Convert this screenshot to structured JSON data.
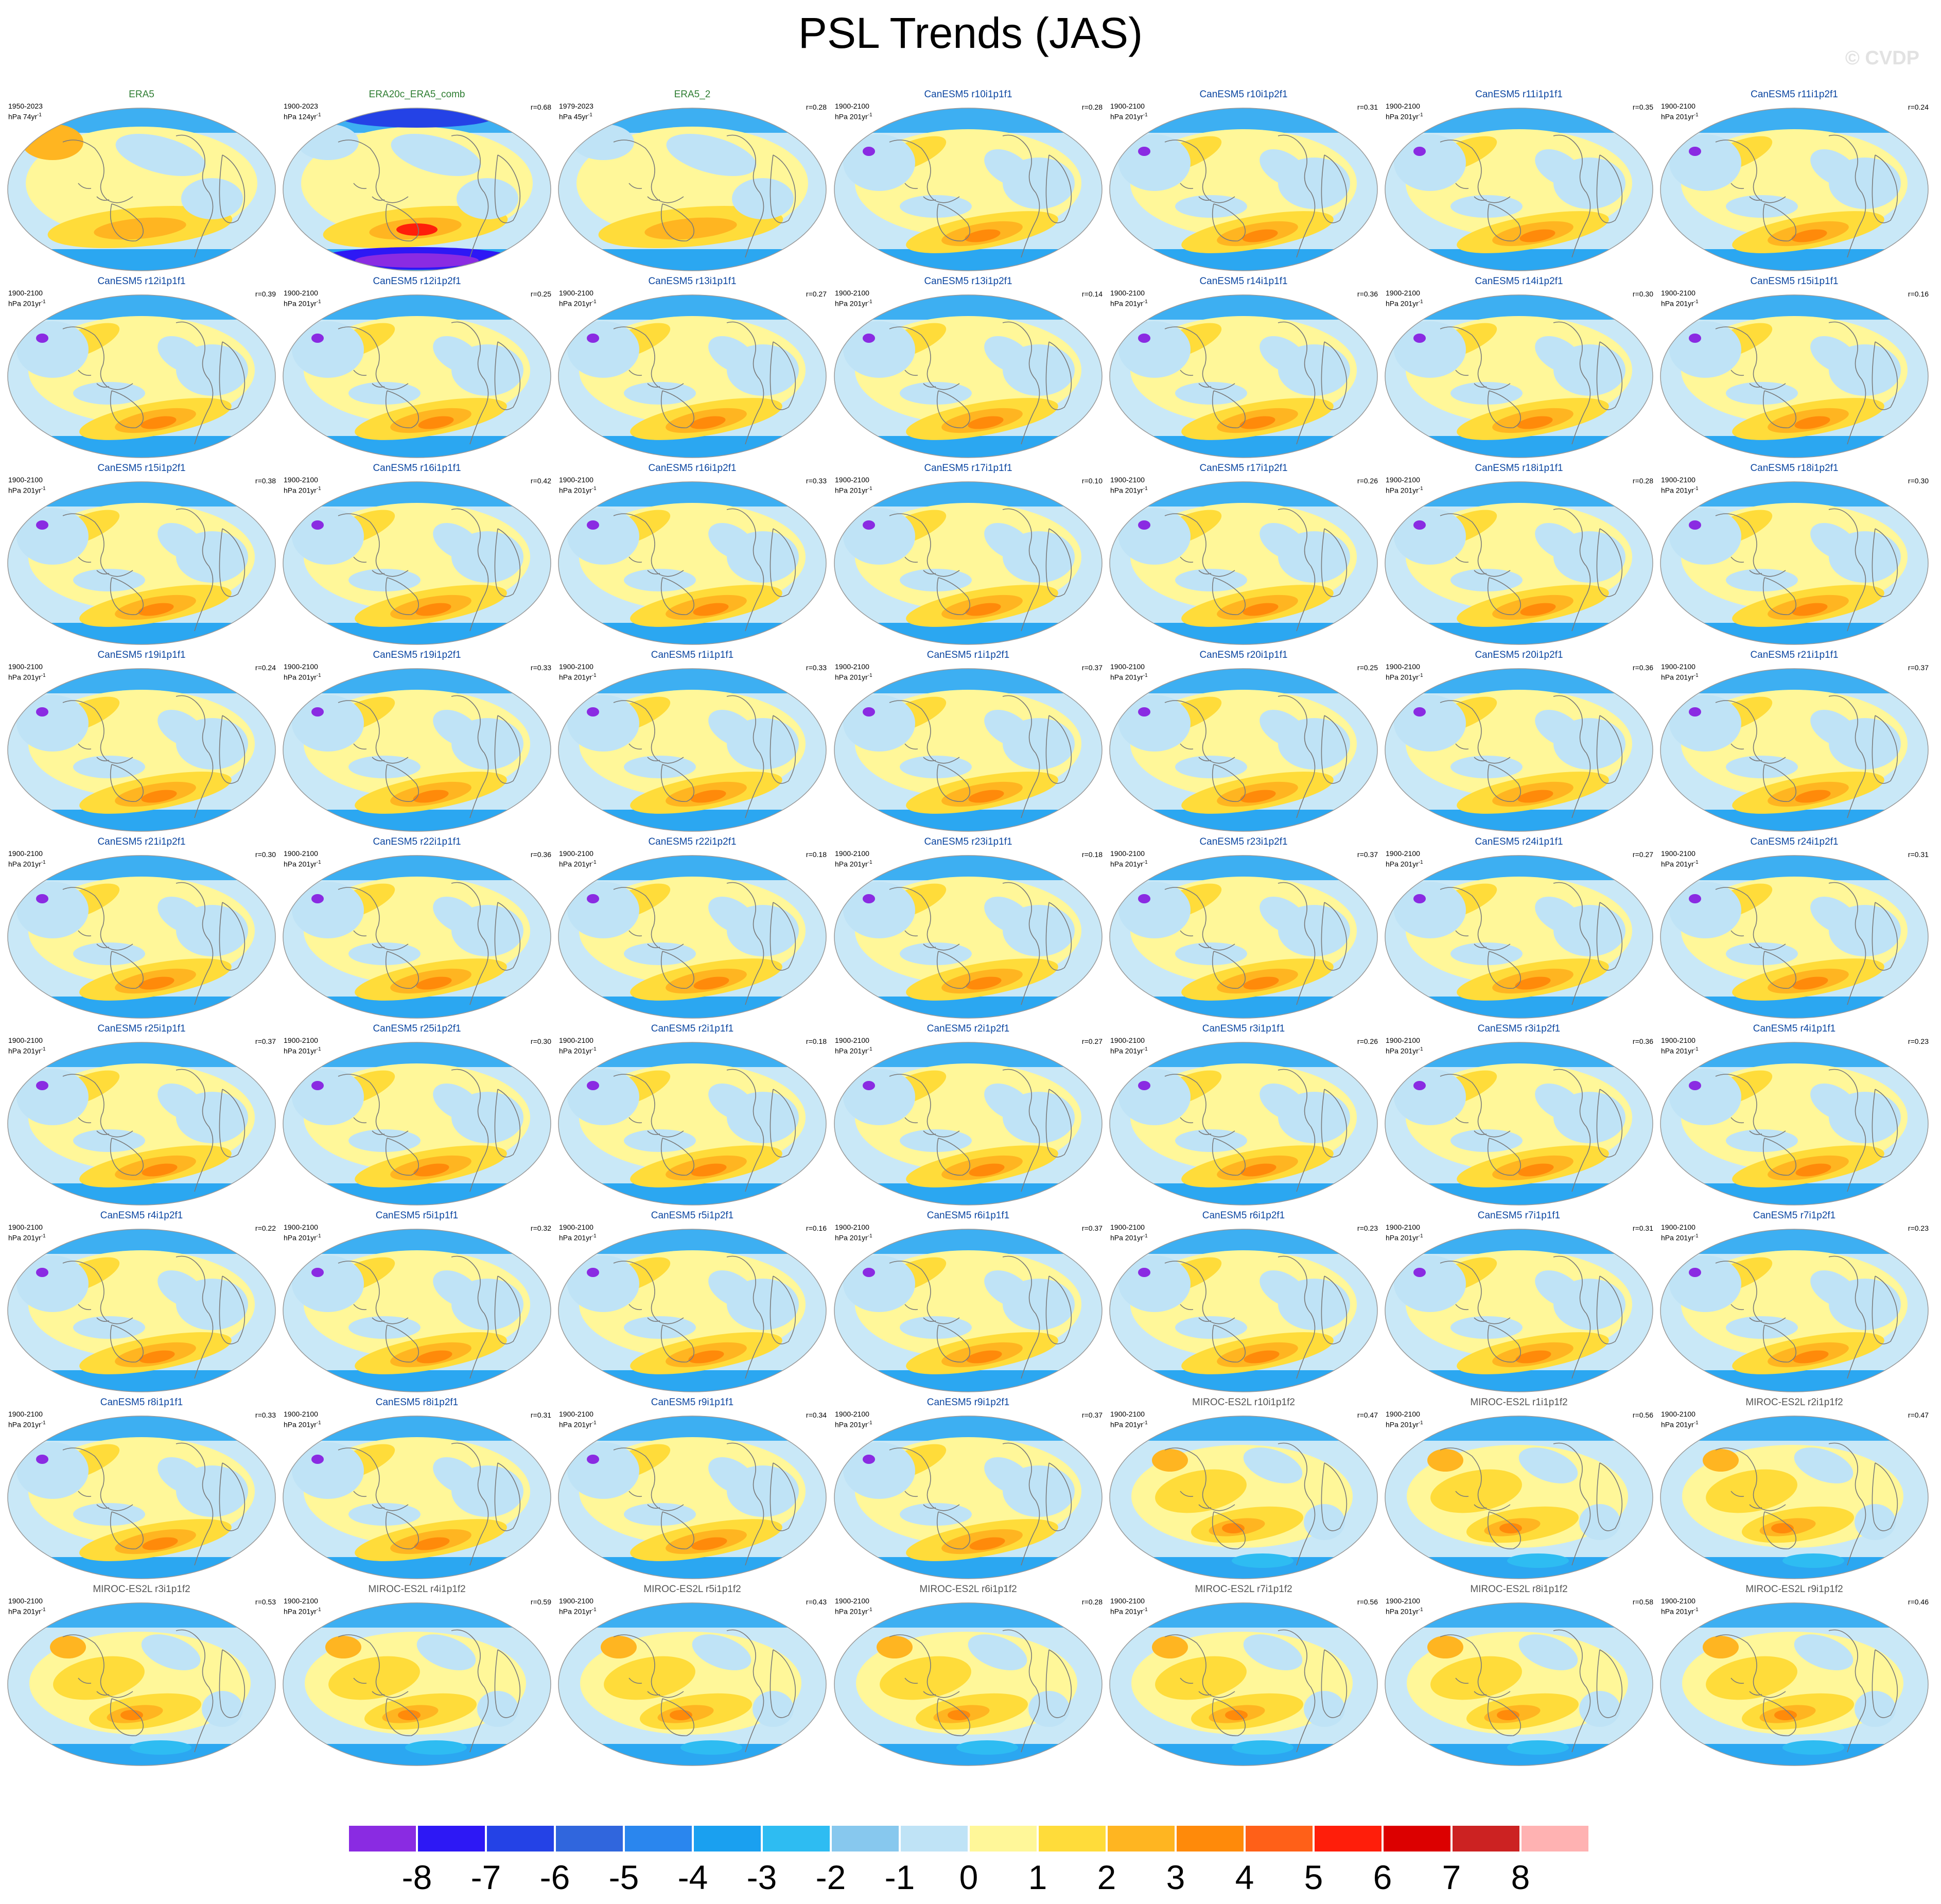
{
  "title": "PSL Trends (JAS)",
  "copyright": "© CVDP",
  "colors": {
    "obs_title": "#2e7d32",
    "canesm_title": "#0d47a1",
    "miroc_title": "#555555",
    "coast": "#7a7a7a",
    "ocean_ring": "#c9e8f7"
  },
  "colorbar": {
    "colors": [
      "#8a2be2",
      "#2d18f5",
      "#2442e6",
      "#3066dd",
      "#2a86ee",
      "#1aa0f0",
      "#2ebcf2",
      "#87c8ee",
      "#bfe3f6",
      "#fff799",
      "#ffdc3a",
      "#ffb521",
      "#ff8a0a",
      "#ff6018",
      "#ff1e0a",
      "#dc0000",
      "#cc2222",
      "#ffb2b2"
    ],
    "labels": [
      "-8",
      "-7",
      "-6",
      "-5",
      "-4",
      "-3",
      "-2",
      "-1",
      "0",
      "1",
      "2",
      "3",
      "4",
      "5",
      "6",
      "7",
      "8"
    ]
  },
  "panels": [
    {
      "title": "ERA5",
      "period": "1950-2023",
      "units": "hPa 74yr",
      "sup": "-1",
      "r": "",
      "group": "obs"
    },
    {
      "title": "ERA20c_ERA5_comb",
      "period": "1900-2023",
      "units": "hPa 124yr",
      "sup": "-1",
      "r": "r=0.68",
      "group": "obs"
    },
    {
      "title": "ERA5_2",
      "period": "1979-2023",
      "units": "hPa 45yr",
      "sup": "-1",
      "r": "r=0.28",
      "group": "obs"
    },
    {
      "title": "CanESM5 r10i1p1f1",
      "period": "1900-2100",
      "units": "hPa 201yr",
      "sup": "-1",
      "r": "r=0.28",
      "group": "canesm"
    },
    {
      "title": "CanESM5 r10i1p2f1",
      "period": "1900-2100",
      "units": "hPa 201yr",
      "sup": "-1",
      "r": "r=0.31",
      "group": "canesm"
    },
    {
      "title": "CanESM5 r11i1p1f1",
      "period": "1900-2100",
      "units": "hPa 201yr",
      "sup": "-1",
      "r": "r=0.35",
      "group": "canesm"
    },
    {
      "title": "CanESM5 r11i1p2f1",
      "period": "1900-2100",
      "units": "hPa 201yr",
      "sup": "-1",
      "r": "r=0.24",
      "group": "canesm"
    },
    {
      "title": "CanESM5 r12i1p1f1",
      "period": "1900-2100",
      "units": "hPa 201yr",
      "sup": "-1",
      "r": "r=0.39",
      "group": "canesm"
    },
    {
      "title": "CanESM5 r12i1p2f1",
      "period": "1900-2100",
      "units": "hPa 201yr",
      "sup": "-1",
      "r": "r=0.25",
      "group": "canesm"
    },
    {
      "title": "CanESM5 r13i1p1f1",
      "period": "1900-2100",
      "units": "hPa 201yr",
      "sup": "-1",
      "r": "r=0.27",
      "group": "canesm"
    },
    {
      "title": "CanESM5 r13i1p2f1",
      "period": "1900-2100",
      "units": "hPa 201yr",
      "sup": "-1",
      "r": "r=0.14",
      "group": "canesm"
    },
    {
      "title": "CanESM5 r14i1p1f1",
      "period": "1900-2100",
      "units": "hPa 201yr",
      "sup": "-1",
      "r": "r=0.36",
      "group": "canesm"
    },
    {
      "title": "CanESM5 r14i1p2f1",
      "period": "1900-2100",
      "units": "hPa 201yr",
      "sup": "-1",
      "r": "r=0.30",
      "group": "canesm"
    },
    {
      "title": "CanESM5 r15i1p1f1",
      "period": "1900-2100",
      "units": "hPa 201yr",
      "sup": "-1",
      "r": "r=0.16",
      "group": "canesm"
    },
    {
      "title": "CanESM5 r15i1p2f1",
      "period": "1900-2100",
      "units": "hPa 201yr",
      "sup": "-1",
      "r": "r=0.38",
      "group": "canesm"
    },
    {
      "title": "CanESM5 r16i1p1f1",
      "period": "1900-2100",
      "units": "hPa 201yr",
      "sup": "-1",
      "r": "r=0.42",
      "group": "canesm"
    },
    {
      "title": "CanESM5 r16i1p2f1",
      "period": "1900-2100",
      "units": "hPa 201yr",
      "sup": "-1",
      "r": "r=0.33",
      "group": "canesm"
    },
    {
      "title": "CanESM5 r17i1p1f1",
      "period": "1900-2100",
      "units": "hPa 201yr",
      "sup": "-1",
      "r": "r=0.10",
      "group": "canesm"
    },
    {
      "title": "CanESM5 r17i1p2f1",
      "period": "1900-2100",
      "units": "hPa 201yr",
      "sup": "-1",
      "r": "r=0.26",
      "group": "canesm"
    },
    {
      "title": "CanESM5 r18i1p1f1",
      "period": "1900-2100",
      "units": "hPa 201yr",
      "sup": "-1",
      "r": "r=0.28",
      "group": "canesm"
    },
    {
      "title": "CanESM5 r18i1p2f1",
      "period": "1900-2100",
      "units": "hPa 201yr",
      "sup": "-1",
      "r": "r=0.30",
      "group": "canesm"
    },
    {
      "title": "CanESM5 r19i1p1f1",
      "period": "1900-2100",
      "units": "hPa 201yr",
      "sup": "-1",
      "r": "r=0.24",
      "group": "canesm"
    },
    {
      "title": "CanESM5 r19i1p2f1",
      "period": "1900-2100",
      "units": "hPa 201yr",
      "sup": "-1",
      "r": "r=0.33",
      "group": "canesm"
    },
    {
      "title": "CanESM5 r1i1p1f1",
      "period": "1900-2100",
      "units": "hPa 201yr",
      "sup": "-1",
      "r": "r=0.33",
      "group": "canesm"
    },
    {
      "title": "CanESM5 r1i1p2f1",
      "period": "1900-2100",
      "units": "hPa 201yr",
      "sup": "-1",
      "r": "r=0.37",
      "group": "canesm"
    },
    {
      "title": "CanESM5 r20i1p1f1",
      "period": "1900-2100",
      "units": "hPa 201yr",
      "sup": "-1",
      "r": "r=0.25",
      "group": "canesm"
    },
    {
      "title": "CanESM5 r20i1p2f1",
      "period": "1900-2100",
      "units": "hPa 201yr",
      "sup": "-1",
      "r": "r=0.36",
      "group": "canesm"
    },
    {
      "title": "CanESM5 r21i1p1f1",
      "period": "1900-2100",
      "units": "hPa 201yr",
      "sup": "-1",
      "r": "r=0.37",
      "group": "canesm"
    },
    {
      "title": "CanESM5 r21i1p2f1",
      "period": "1900-2100",
      "units": "hPa 201yr",
      "sup": "-1",
      "r": "r=0.30",
      "group": "canesm"
    },
    {
      "title": "CanESM5 r22i1p1f1",
      "period": "1900-2100",
      "units": "hPa 201yr",
      "sup": "-1",
      "r": "r=0.36",
      "group": "canesm"
    },
    {
      "title": "CanESM5 r22i1p2f1",
      "period": "1900-2100",
      "units": "hPa 201yr",
      "sup": "-1",
      "r": "r=0.18",
      "group": "canesm"
    },
    {
      "title": "CanESM5 r23i1p1f1",
      "period": "1900-2100",
      "units": "hPa 201yr",
      "sup": "-1",
      "r": "r=0.18",
      "group": "canesm"
    },
    {
      "title": "CanESM5 r23i1p2f1",
      "period": "1900-2100",
      "units": "hPa 201yr",
      "sup": "-1",
      "r": "r=0.37",
      "group": "canesm"
    },
    {
      "title": "CanESM5 r24i1p1f1",
      "period": "1900-2100",
      "units": "hPa 201yr",
      "sup": "-1",
      "r": "r=0.27",
      "group": "canesm"
    },
    {
      "title": "CanESM5 r24i1p2f1",
      "period": "1900-2100",
      "units": "hPa 201yr",
      "sup": "-1",
      "r": "r=0.31",
      "group": "canesm"
    },
    {
      "title": "CanESM5 r25i1p1f1",
      "period": "1900-2100",
      "units": "hPa 201yr",
      "sup": "-1",
      "r": "r=0.37",
      "group": "canesm"
    },
    {
      "title": "CanESM5 r25i1p2f1",
      "period": "1900-2100",
      "units": "hPa 201yr",
      "sup": "-1",
      "r": "r=0.30",
      "group": "canesm"
    },
    {
      "title": "CanESM5 r2i1p1f1",
      "period": "1900-2100",
      "units": "hPa 201yr",
      "sup": "-1",
      "r": "r=0.18",
      "group": "canesm"
    },
    {
      "title": "CanESM5 r2i1p2f1",
      "period": "1900-2100",
      "units": "hPa 201yr",
      "sup": "-1",
      "r": "r=0.27",
      "group": "canesm"
    },
    {
      "title": "CanESM5 r3i1p1f1",
      "period": "1900-2100",
      "units": "hPa 201yr",
      "sup": "-1",
      "r": "r=0.26",
      "group": "canesm"
    },
    {
      "title": "CanESM5 r3i1p2f1",
      "period": "1900-2100",
      "units": "hPa 201yr",
      "sup": "-1",
      "r": "r=0.36",
      "group": "canesm"
    },
    {
      "title": "CanESM5 r4i1p1f1",
      "period": "1900-2100",
      "units": "hPa 201yr",
      "sup": "-1",
      "r": "r=0.23",
      "group": "canesm"
    },
    {
      "title": "CanESM5 r4i1p2f1",
      "period": "1900-2100",
      "units": "hPa 201yr",
      "sup": "-1",
      "r": "r=0.22",
      "group": "canesm"
    },
    {
      "title": "CanESM5 r5i1p1f1",
      "period": "1900-2100",
      "units": "hPa 201yr",
      "sup": "-1",
      "r": "r=0.32",
      "group": "canesm"
    },
    {
      "title": "CanESM5 r5i1p2f1",
      "period": "1900-2100",
      "units": "hPa 201yr",
      "sup": "-1",
      "r": "r=0.16",
      "group": "canesm"
    },
    {
      "title": "CanESM5 r6i1p1f1",
      "period": "1900-2100",
      "units": "hPa 201yr",
      "sup": "-1",
      "r": "r=0.37",
      "group": "canesm"
    },
    {
      "title": "CanESM5 r6i1p2f1",
      "period": "1900-2100",
      "units": "hPa 201yr",
      "sup": "-1",
      "r": "r=0.23",
      "group": "canesm"
    },
    {
      "title": "CanESM5 r7i1p1f1",
      "period": "1900-2100",
      "units": "hPa 201yr",
      "sup": "-1",
      "r": "r=0.31",
      "group": "canesm"
    },
    {
      "title": "CanESM5 r7i1p2f1",
      "period": "1900-2100",
      "units": "hPa 201yr",
      "sup": "-1",
      "r": "r=0.23",
      "group": "canesm"
    },
    {
      "title": "CanESM5 r8i1p1f1",
      "period": "1900-2100",
      "units": "hPa 201yr",
      "sup": "-1",
      "r": "r=0.33",
      "group": "canesm"
    },
    {
      "title": "CanESM5 r8i1p2f1",
      "period": "1900-2100",
      "units": "hPa 201yr",
      "sup": "-1",
      "r": "r=0.31",
      "group": "canesm"
    },
    {
      "title": "CanESM5 r9i1p1f1",
      "period": "1900-2100",
      "units": "hPa 201yr",
      "sup": "-1",
      "r": "r=0.34",
      "group": "canesm"
    },
    {
      "title": "CanESM5 r9i1p2f1",
      "period": "1900-2100",
      "units": "hPa 201yr",
      "sup": "-1",
      "r": "r=0.37",
      "group": "canesm"
    },
    {
      "title": "MIROC-ES2L r10i1p1f2",
      "period": "1900-2100",
      "units": "hPa 201yr",
      "sup": "-1",
      "r": "r=0.47",
      "group": "miroc"
    },
    {
      "title": "MIROC-ES2L r1i1p1f2",
      "period": "1900-2100",
      "units": "hPa 201yr",
      "sup": "-1",
      "r": "r=0.56",
      "group": "miroc"
    },
    {
      "title": "MIROC-ES2L r2i1p1f2",
      "period": "1900-2100",
      "units": "hPa 201yr",
      "sup": "-1",
      "r": "r=0.47",
      "group": "miroc"
    },
    {
      "title": "MIROC-ES2L r3i1p1f2",
      "period": "1900-2100",
      "units": "hPa 201yr",
      "sup": "-1",
      "r": "r=0.53",
      "group": "miroc"
    },
    {
      "title": "MIROC-ES2L r4i1p1f2",
      "period": "1900-2100",
      "units": "hPa 201yr",
      "sup": "-1",
      "r": "r=0.59",
      "group": "miroc"
    },
    {
      "title": "MIROC-ES2L r5i1p1f2",
      "period": "1900-2100",
      "units": "hPa 201yr",
      "sup": "-1",
      "r": "r=0.43",
      "group": "miroc"
    },
    {
      "title": "MIROC-ES2L r6i1p1f2",
      "period": "1900-2100",
      "units": "hPa 201yr",
      "sup": "-1",
      "r": "r=0.28",
      "group": "miroc"
    },
    {
      "title": "MIROC-ES2L r7i1p1f2",
      "period": "1900-2100",
      "units": "hPa 201yr",
      "sup": "-1",
      "r": "r=0.56",
      "group": "miroc"
    },
    {
      "title": "MIROC-ES2L r8i1p1f2",
      "period": "1900-2100",
      "units": "hPa 201yr",
      "sup": "-1",
      "r": "r=0.58",
      "group": "miroc"
    },
    {
      "title": "MIROC-ES2L r9i1p1f2",
      "period": "1900-2100",
      "units": "hPa 201yr",
      "sup": "-1",
      "r": "r=0.46",
      "group": "miroc"
    }
  ]
}
